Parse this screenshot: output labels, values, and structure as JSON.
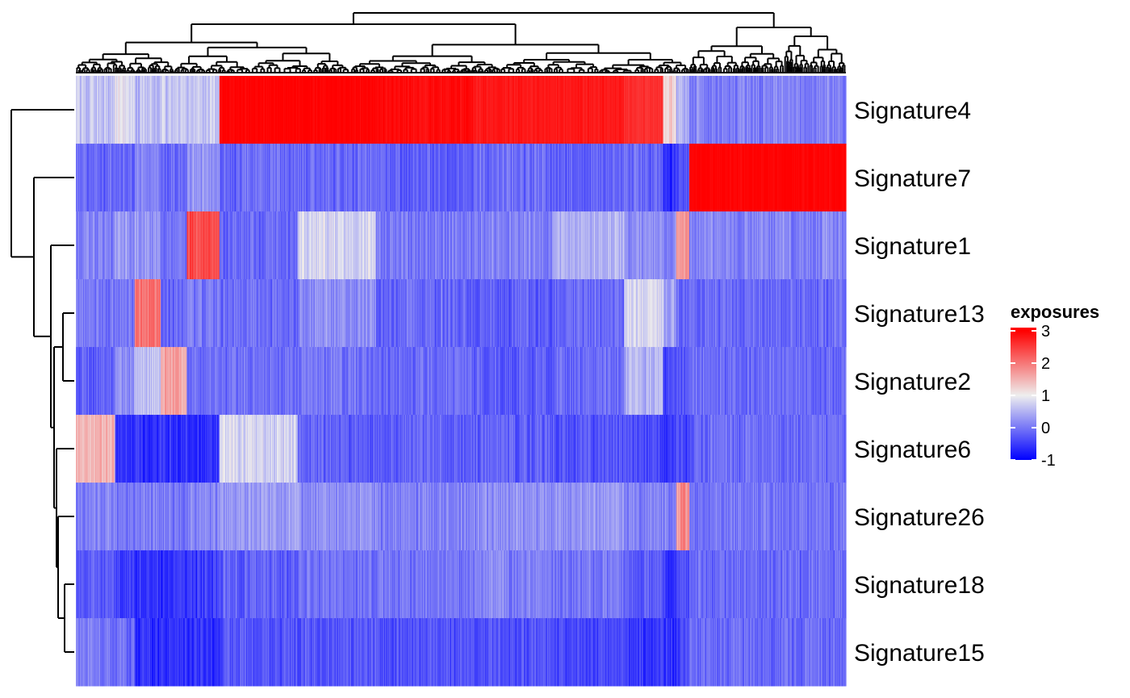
{
  "chart_data": {
    "type": "heatmap",
    "title": "",
    "xlabel": "",
    "ylabel": "",
    "rows": [
      "Signature4",
      "Signature7",
      "Signature1",
      "Signature13",
      "Signature2",
      "Signature6",
      "Signature26",
      "Signature18",
      "Signature15"
    ],
    "column_groups": [
      {
        "columns": 60,
        "values": [
          0.6,
          -0.1,
          0.1,
          0.0,
          -0.2,
          1.5,
          0.1,
          -0.2,
          0.0
        ]
      },
      {
        "columns": 30,
        "values": [
          0.9,
          -0.1,
          0.3,
          0.0,
          0.2,
          -0.6,
          0.0,
          -0.5,
          -0.1
        ]
      },
      {
        "columns": 40,
        "values": [
          0.6,
          0.1,
          0.3,
          2.0,
          0.6,
          -0.6,
          0.1,
          -0.6,
          -0.6
        ]
      },
      {
        "columns": 40,
        "values": [
          0.7,
          -0.1,
          0.0,
          -0.1,
          1.6,
          -0.6,
          0.0,
          -0.6,
          -0.6
        ]
      },
      {
        "columns": 50,
        "values": [
          0.7,
          0.3,
          2.4,
          0.0,
          -0.1,
          -0.6,
          0.1,
          -0.5,
          -0.6
        ]
      },
      {
        "columns": 120,
        "values": [
          3.0,
          -0.1,
          -0.1,
          -0.1,
          -0.1,
          0.8,
          0.3,
          -0.2,
          -0.3
        ]
      },
      {
        "columns": 120,
        "values": [
          3.0,
          -0.1,
          0.8,
          0.2,
          0.0,
          -0.2,
          0.2,
          0.0,
          -0.3
        ]
      },
      {
        "columns": 150,
        "values": [
          2.9,
          -0.2,
          0.0,
          -0.1,
          -0.1,
          -0.2,
          0.1,
          0.0,
          -0.3
        ]
      },
      {
        "columns": 120,
        "values": [
          2.8,
          -0.1,
          0.1,
          -0.2,
          -0.2,
          -0.2,
          0.2,
          0.1,
          -0.3
        ]
      },
      {
        "columns": 110,
        "values": [
          2.8,
          -0.2,
          0.5,
          -0.1,
          -0.1,
          -0.3,
          0.3,
          0.0,
          -0.4
        ]
      },
      {
        "columns": 60,
        "values": [
          2.6,
          -0.1,
          0.2,
          0.8,
          0.5,
          -0.4,
          0.1,
          -0.2,
          -0.5
        ]
      },
      {
        "columns": 20,
        "values": [
          1.2,
          -0.6,
          0.1,
          0.3,
          -0.5,
          -0.6,
          0.1,
          -0.6,
          -0.6
        ]
      },
      {
        "columns": 20,
        "values": [
          0.5,
          -0.3,
          1.8,
          -0.1,
          -0.2,
          -0.4,
          1.8,
          -0.3,
          -0.4
        ]
      },
      {
        "columns": 240,
        "values": [
          0.1,
          3.0,
          0.1,
          -0.1,
          -0.1,
          -0.1,
          0.0,
          -0.1,
          -0.1
        ]
      }
    ],
    "color_scale": {
      "stops": [
        {
          "value": -1,
          "color": "#0000ff"
        },
        {
          "value": 1,
          "color": "#eeeeee"
        },
        {
          "value": 3,
          "color": "#ff0000"
        }
      ]
    },
    "legend": {
      "title": "exposures",
      "ticks": [
        3,
        2,
        1,
        0,
        -1
      ],
      "tick_labels": [
        "3",
        "2",
        "1",
        "0",
        "-1"
      ],
      "placement": "right",
      "range": [
        -1,
        3.1
      ]
    },
    "row_dendrogram": true,
    "column_dendrogram": true,
    "grid": false
  }
}
